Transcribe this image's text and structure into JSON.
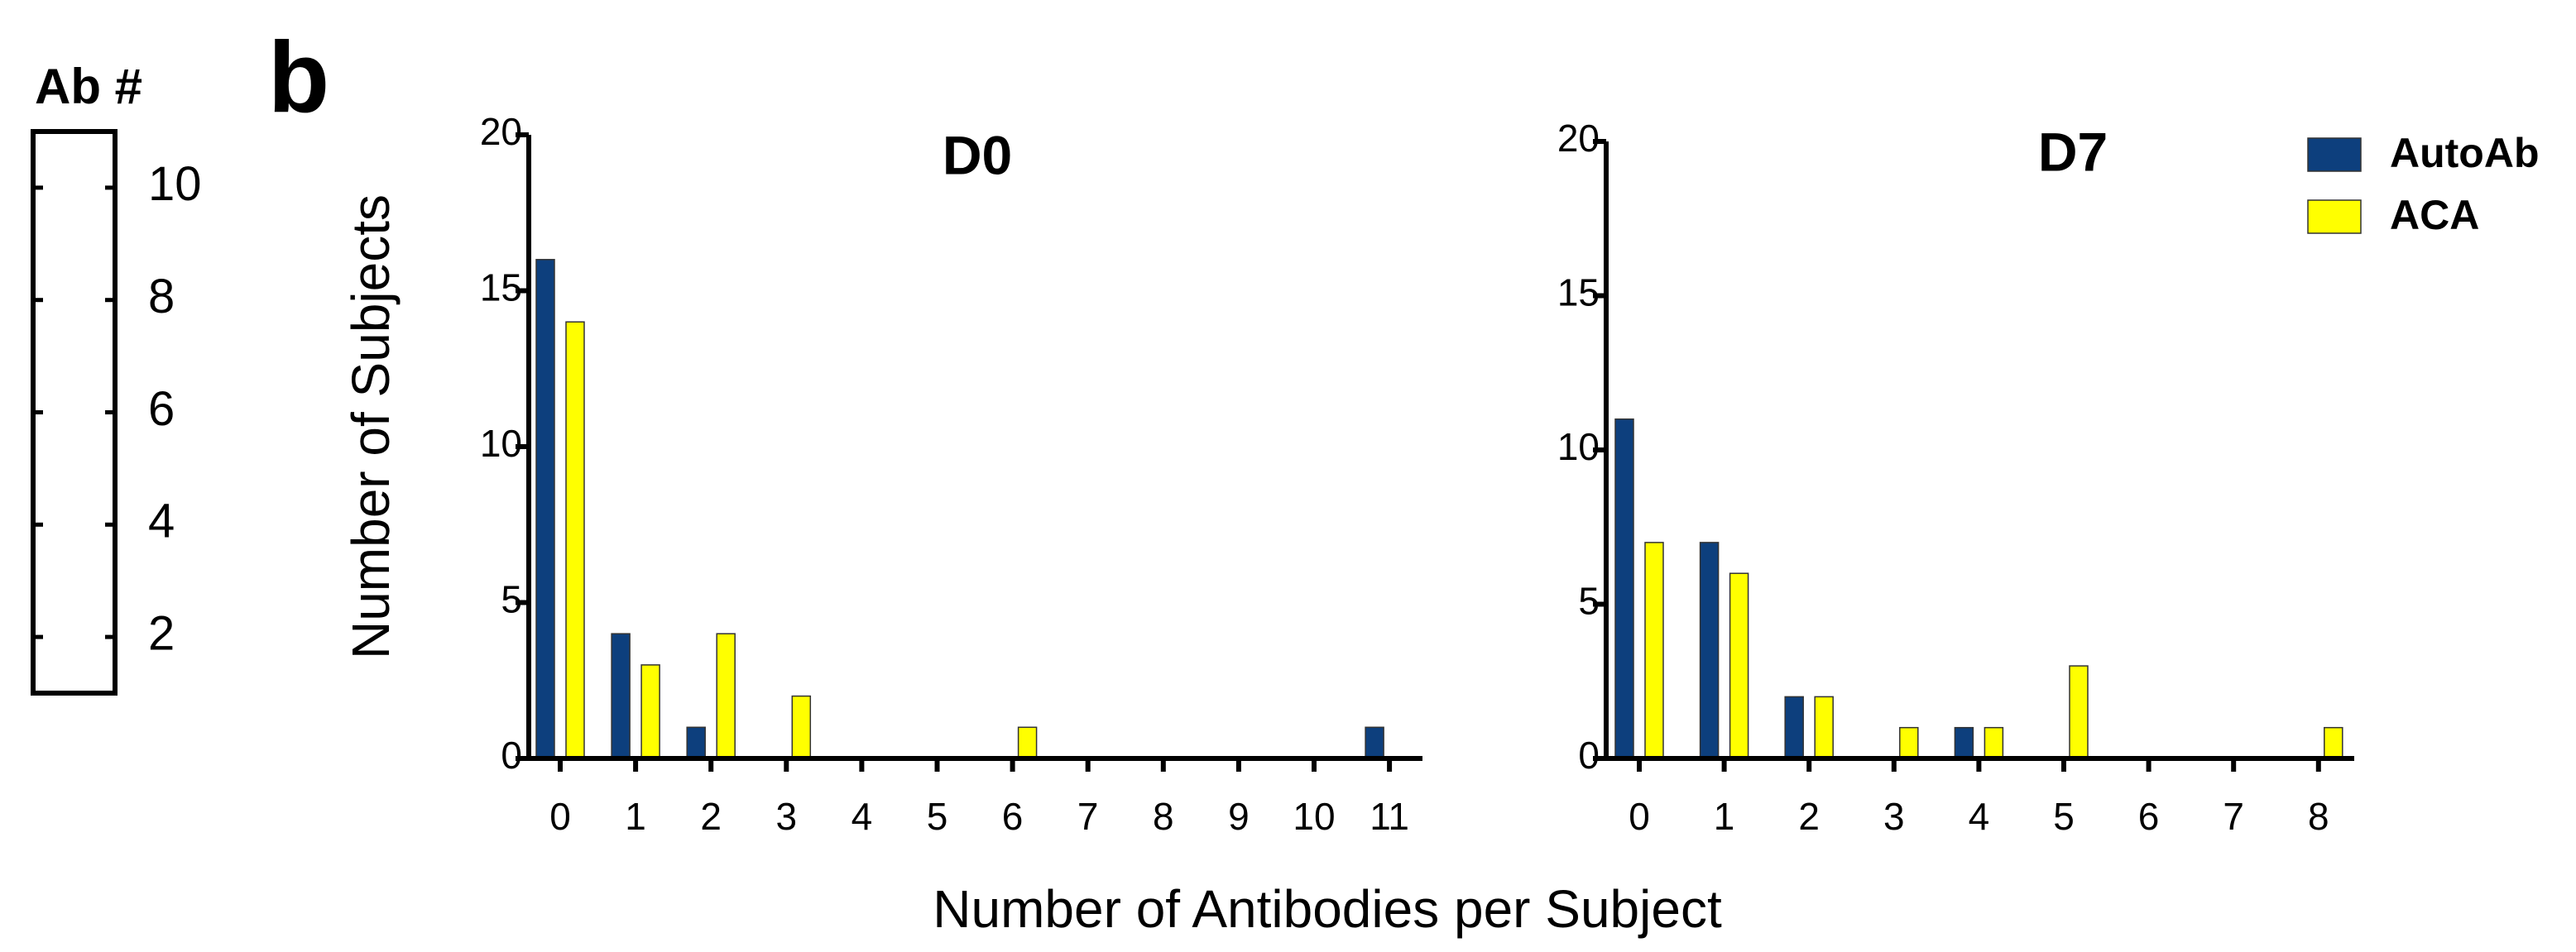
{
  "panel_label": "b",
  "x_label": "Number of Antibodies per Subject",
  "chart_data": [
    {
      "type": "colorbar",
      "title": "Ab #",
      "ylim": [
        1,
        11
      ],
      "yticks": [
        2,
        4,
        6,
        8,
        10
      ]
    },
    {
      "type": "bar",
      "title": "D0",
      "y_label": "Number of Subjects",
      "categories": [
        "0",
        "1",
        "2",
        "3",
        "4",
        "5",
        "6",
        "7",
        "8",
        "9",
        "10",
        "11"
      ],
      "series": [
        {
          "name": "AutoAb",
          "color": "#0d3f7d",
          "values": [
            16,
            4,
            1,
            0,
            0,
            0,
            0,
            0,
            0,
            0,
            0,
            1
          ]
        },
        {
          "name": "ACA",
          "color": "#ffff00",
          "values": [
            14,
            3,
            4,
            2,
            0,
            0,
            1,
            0,
            0,
            0,
            0,
            0
          ]
        }
      ],
      "ylim": [
        0,
        20
      ],
      "yticks": [
        0,
        5,
        10,
        15,
        20
      ]
    },
    {
      "type": "bar",
      "title": "D7",
      "legend": "top-right",
      "categories": [
        "0",
        "1",
        "2",
        "3",
        "4",
        "5",
        "6",
        "7",
        "8"
      ],
      "series": [
        {
          "name": "AutoAb",
          "color": "#0d3f7d",
          "values": [
            11,
            7,
            2,
            0,
            1,
            0,
            0,
            0,
            0
          ]
        },
        {
          "name": "ACA",
          "color": "#ffff00",
          "values": [
            7,
            6,
            2,
            1,
            1,
            3,
            0,
            0,
            1
          ]
        }
      ],
      "ylim": [
        0,
        20
      ],
      "yticks": [
        0,
        5,
        10,
        15,
        20
      ]
    }
  ]
}
